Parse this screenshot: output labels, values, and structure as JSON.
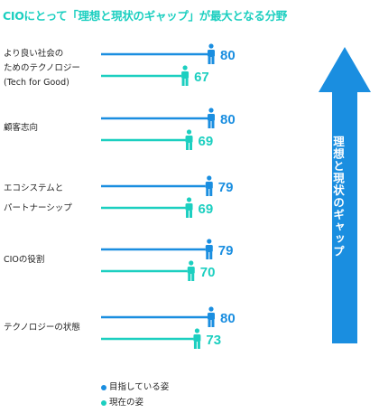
{
  "title": "CIOにとって「理想と現状のギャップ」が最大となる分野",
  "categories": [
    {
      "lines": [
        "より良い社会の",
        "ためのテクノロジー",
        "(Tech for Good)"
      ]
    },
    {
      "lines": [
        "顧客志向"
      ]
    },
    {
      "lines": [
        "エコシステムと",
        "パートナーシップ"
      ]
    },
    {
      "lines": [
        "CIOの役割"
      ]
    },
    {
      "lines": [
        "テクノロジーの状態"
      ]
    }
  ],
  "legend": [
    {
      "label": "目指している姿",
      "color": "#1a8ee0"
    },
    {
      "label": "現在の姿",
      "color": "#1ccfc0"
    }
  ],
  "arrow_label": "理想と現状のギャップ",
  "colors": {
    "ideal": "#1a8ee0",
    "current": "#1ccfc0",
    "arrow": "#1a8ee0"
  },
  "icons": {
    "ideal": "person-icon",
    "current": "person-icon"
  },
  "chart_data": {
    "type": "bar",
    "orientation": "horizontal",
    "categories": [
      "より良い社会のためのテクノロジー(Tech for Good)",
      "顧客志向",
      "エコシステムとパートナーシップ",
      "CIOの役割",
      "テクノロジーの状態"
    ],
    "series": [
      {
        "name": "目指している姿",
        "values": [
          80,
          80,
          79,
          79,
          80
        ]
      },
      {
        "name": "現在の姿",
        "values": [
          67,
          69,
          69,
          70,
          73
        ]
      }
    ]
  }
}
